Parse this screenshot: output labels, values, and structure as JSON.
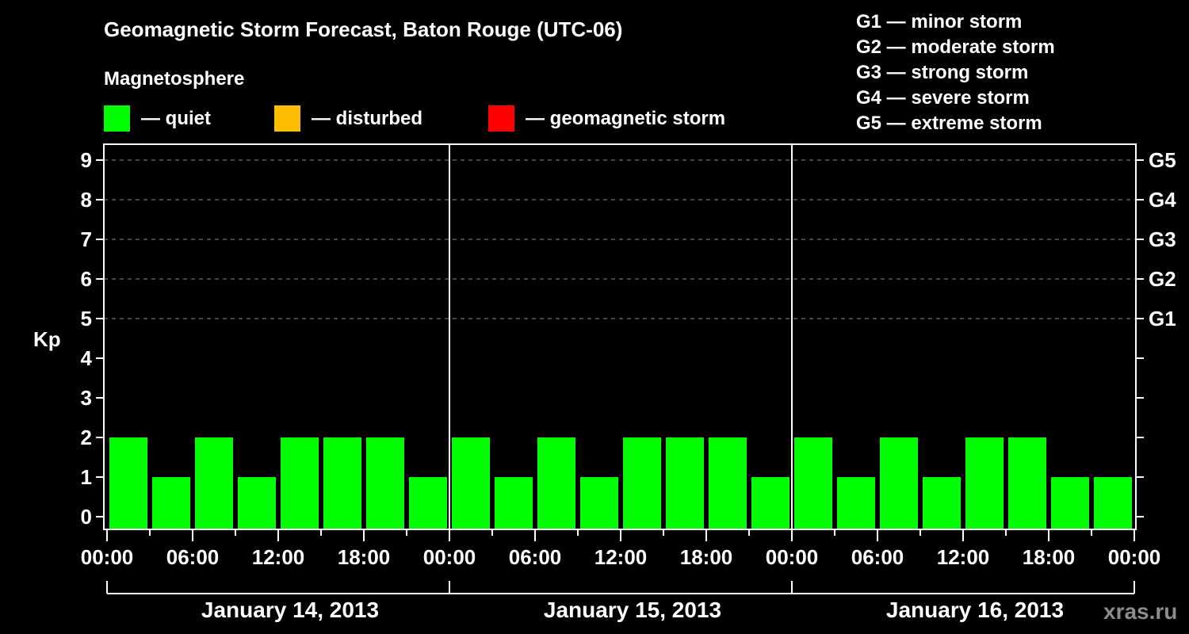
{
  "header": {
    "title": "Geomagnetic Storm Forecast, Baton Rouge (UTC-06)",
    "subtitle": "Magnetosphere"
  },
  "legend": {
    "items": [
      {
        "label": "— quiet",
        "color": "#00ff00"
      },
      {
        "label": "— disturbed",
        "color": "#ffbf00"
      },
      {
        "label": "— geomagnetic storm",
        "color": "#ff0000"
      }
    ]
  },
  "storm_scale": [
    "G1 — minor storm",
    "G2 — moderate storm",
    "G3 — strong storm",
    "G4 — severe storm",
    "G5 — extreme storm"
  ],
  "axis": {
    "ylabel": "Kp",
    "yticks": [
      "0",
      "1",
      "2",
      "3",
      "4",
      "5",
      "6",
      "7",
      "8",
      "9"
    ],
    "right_ticks": {
      "5": "G1",
      "6": "G2",
      "7": "G3",
      "8": "G4",
      "9": "G5"
    },
    "xticks": [
      "00:00",
      "06:00",
      "12:00",
      "18:00",
      "00:00",
      "06:00",
      "12:00",
      "18:00",
      "00:00",
      "06:00",
      "12:00",
      "18:00",
      "00:00"
    ],
    "days": [
      "January 14, 2013",
      "January 15, 2013",
      "January 16, 2013"
    ]
  },
  "watermark": "xras.ru",
  "chart_data": {
    "type": "bar",
    "title": "Geomagnetic Storm Forecast, Baton Rouge (UTC-06)",
    "subtitle": "Magnetosphere",
    "xlabel": "",
    "ylabel": "Kp",
    "ylim": [
      0,
      9
    ],
    "grid": "dashed horizontal lines at Kp 5-9",
    "legend_position": "top",
    "categories": [
      "Jan 14 00:00",
      "Jan 14 03:00",
      "Jan 14 06:00",
      "Jan 14 09:00",
      "Jan 14 12:00",
      "Jan 14 15:00",
      "Jan 14 18:00",
      "Jan 14 21:00",
      "Jan 15 00:00",
      "Jan 15 03:00",
      "Jan 15 06:00",
      "Jan 15 09:00",
      "Jan 15 12:00",
      "Jan 15 15:00",
      "Jan 15 18:00",
      "Jan 15 21:00",
      "Jan 16 00:00",
      "Jan 16 03:00",
      "Jan 16 06:00",
      "Jan 16 09:00",
      "Jan 16 12:00",
      "Jan 16 15:00",
      "Jan 16 18:00",
      "Jan 16 21:00"
    ],
    "series": [
      {
        "name": "Kp",
        "values": [
          2,
          1,
          2,
          1,
          2,
          2,
          2,
          1,
          2,
          1,
          2,
          1,
          2,
          2,
          2,
          1,
          2,
          1,
          2,
          1,
          2,
          2,
          1,
          1
        ]
      }
    ],
    "bar_colors": {
      "quiet": "#00ff00",
      "disturbed": "#ffbf00",
      "storm": "#ff0000"
    },
    "bar_status": "all quiet"
  }
}
